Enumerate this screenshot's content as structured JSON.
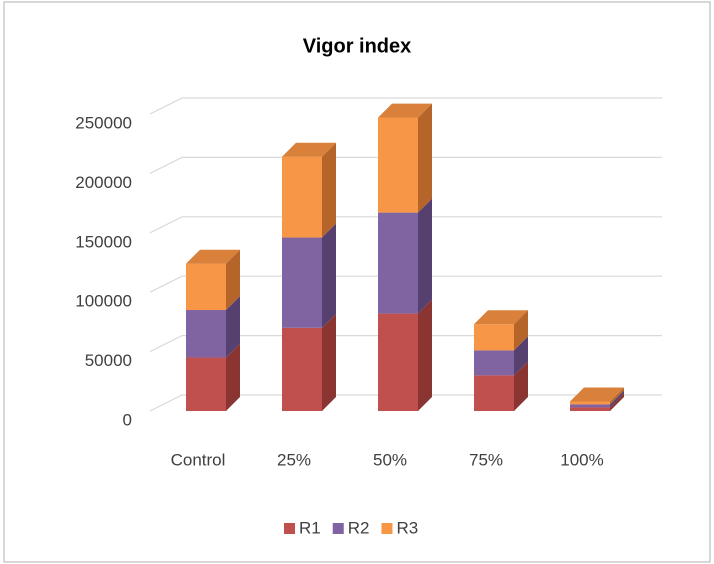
{
  "chart_data": {
    "type": "bar3d_stacked",
    "title": "Vigor index",
    "categories": [
      "Control",
      "25%",
      "50%",
      "75%",
      "100%"
    ],
    "series": [
      {
        "name": "R1",
        "color": "#c0504d",
        "side": "#8b3533",
        "top": "#a9443f",
        "values": [
          45000,
          70000,
          82000,
          30000,
          3000
        ]
      },
      {
        "name": "R2",
        "color": "#8064a2",
        "side": "#56406f",
        "top": "#6d5590",
        "values": [
          40000,
          76000,
          85000,
          21000,
          2500
        ]
      },
      {
        "name": "R3",
        "color": "#f79646",
        "side": "#b5652a",
        "top": "#d9803a",
        "values": [
          39000,
          68000,
          80000,
          22000,
          2500
        ]
      }
    ],
    "ylim": [
      0,
      250000
    ],
    "yticks": [
      0,
      50000,
      100000,
      150000,
      200000,
      250000
    ],
    "grid": true,
    "legend": "bottom"
  }
}
